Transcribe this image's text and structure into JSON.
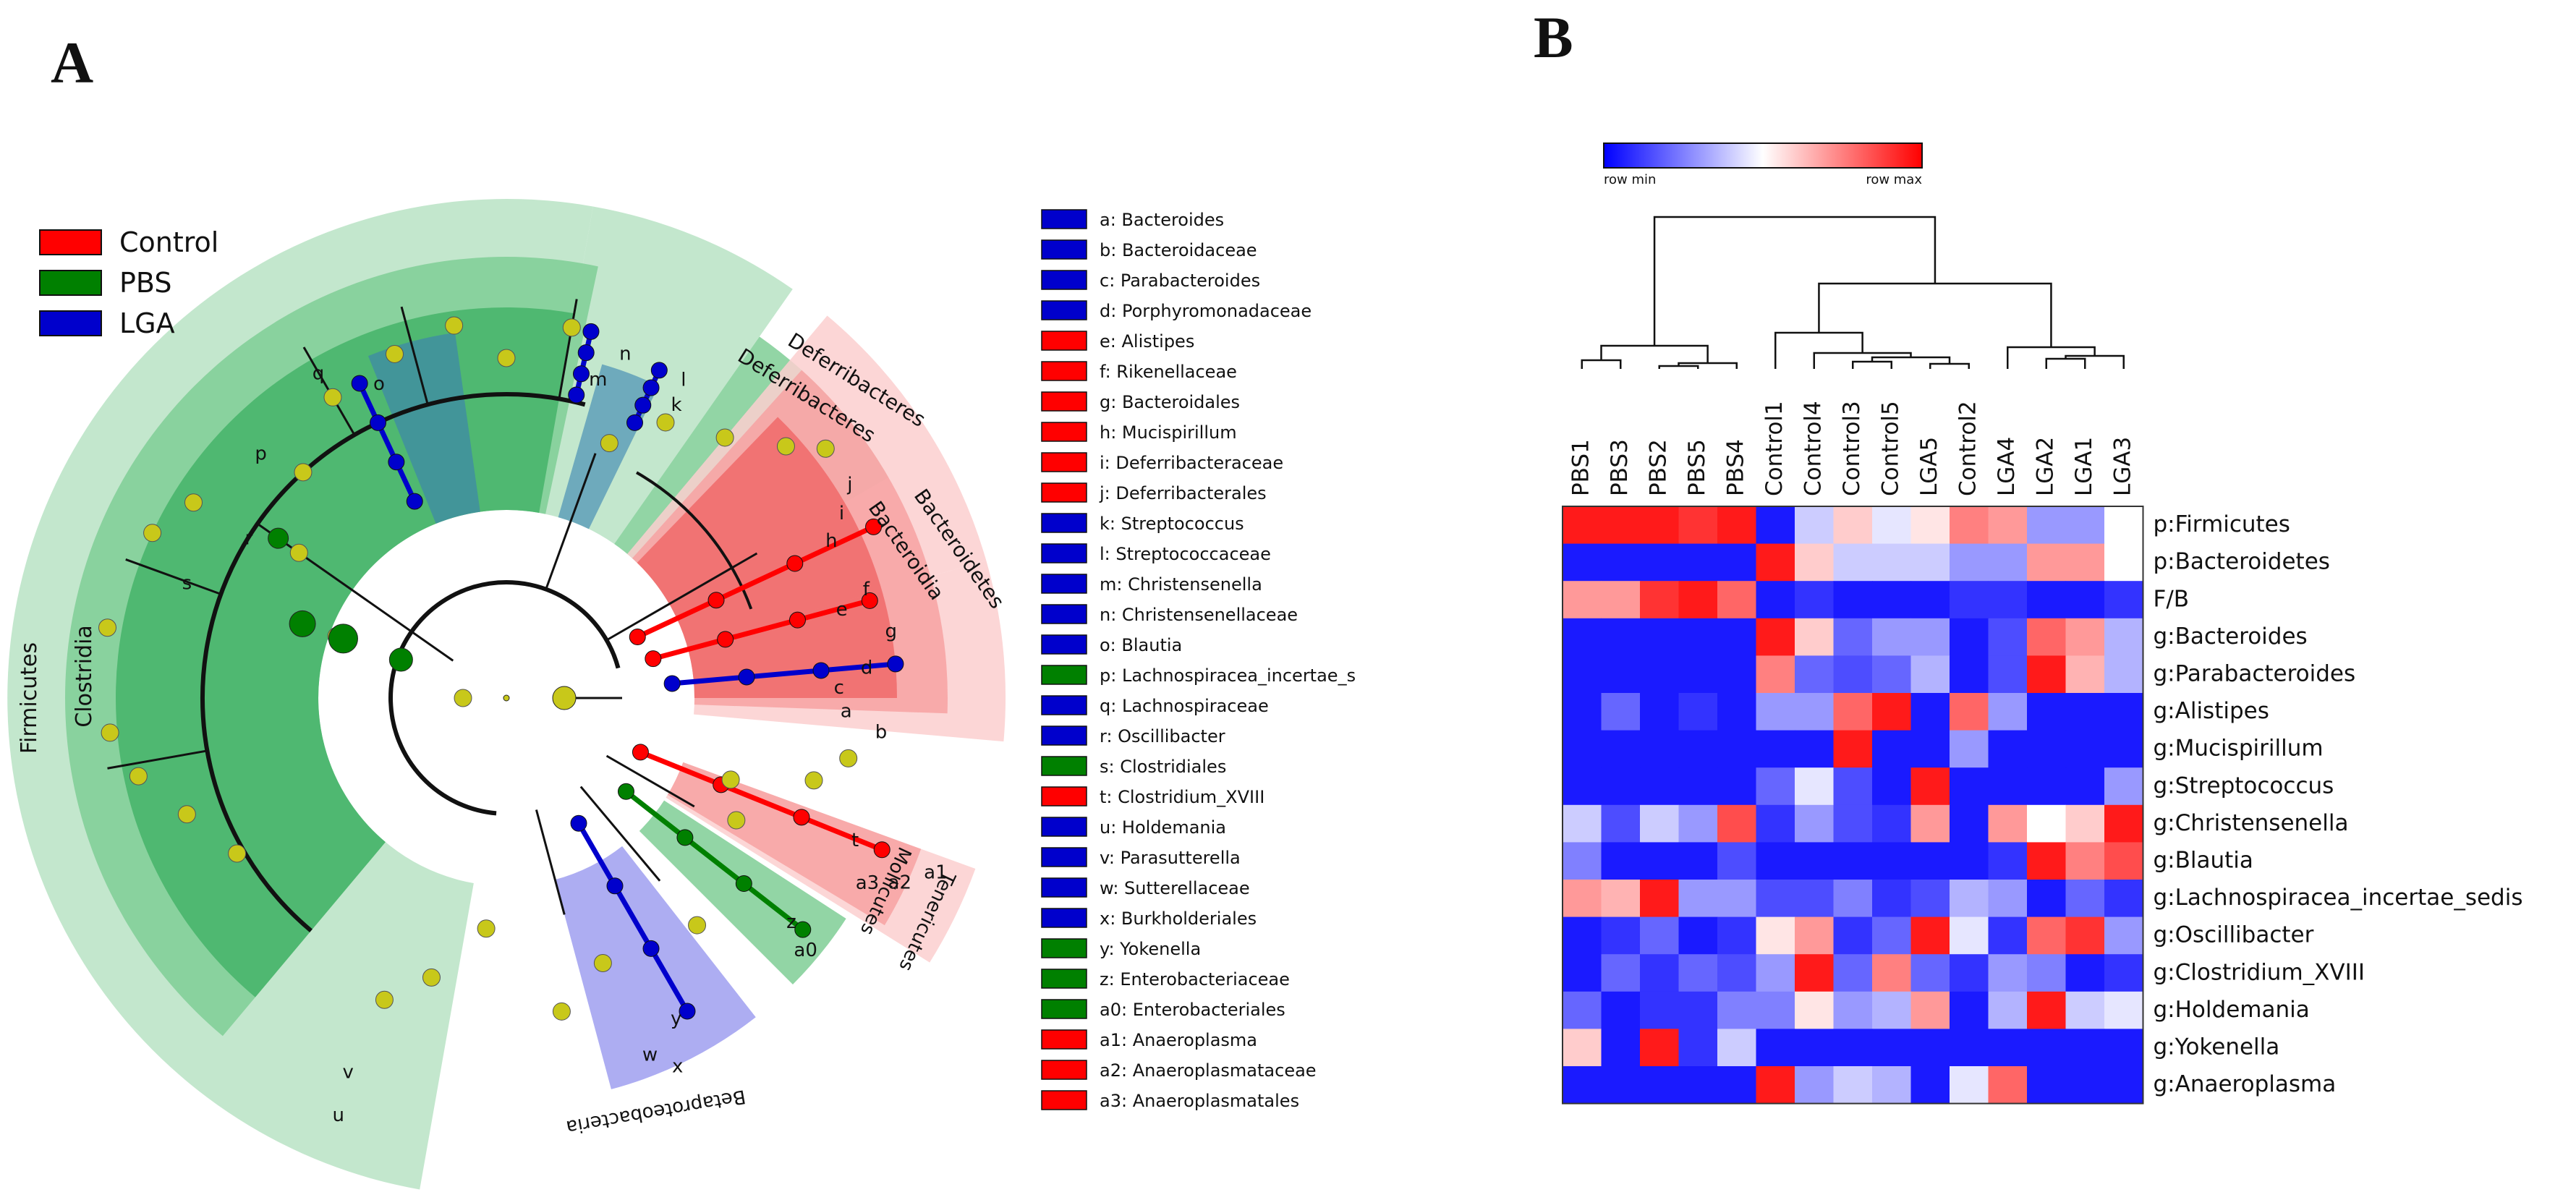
{
  "panels": {
    "a": "A",
    "b": "B"
  },
  "colors": {
    "control": "#ff0000",
    "pbs": "#008000",
    "lga": "#0000cc",
    "neutral_node": "#c8c81a",
    "firmicutes_light": "#b8e3c4",
    "firmicutes_mid": "#7fce95",
    "firmicutes_dark": "#45b469",
    "bacteroidetes_light": "#fbcfcf",
    "bacteroidetes_mid": "#f7a2a2",
    "bacteroidetes_dark": "#f06a6a",
    "proteo_blue": "#9f9ff0"
  },
  "chart_data": [
    {
      "type": "cladogram",
      "legend": [
        {
          "name": "Control",
          "color": "#ff0000"
        },
        {
          "name": "PBS",
          "color": "#008000"
        },
        {
          "name": "LGA",
          "color": "#0000cc"
        }
      ],
      "sector_labels": [
        "Firmicutes",
        "Clostridia",
        "Deferribacteres",
        "Deferribacteres",
        "Bacteroidetes",
        "Bacteroidia",
        "Tenericutes",
        "Mollicutes",
        "Betaproteobacteria"
      ],
      "clade_letters": [
        "n",
        "m",
        "l",
        "k",
        "j",
        "i",
        "h",
        "f",
        "e",
        "g",
        "d",
        "c",
        "b",
        "a",
        "q",
        "o",
        "p",
        "s",
        "r",
        "t",
        "a3",
        "a2",
        "a1",
        "a0",
        "z",
        "y",
        "x",
        "w",
        "v",
        "u"
      ],
      "key": [
        {
          "label": "a: Bacteroides",
          "group": "LGA"
        },
        {
          "label": "b: Bacteroidaceae",
          "group": "LGA"
        },
        {
          "label": "c: Parabacteroides",
          "group": "LGA"
        },
        {
          "label": "d: Porphyromonadaceae",
          "group": "LGA"
        },
        {
          "label": "e: Alistipes",
          "group": "Control"
        },
        {
          "label": "f: Rikenellaceae",
          "group": "Control"
        },
        {
          "label": "g: Bacteroidales",
          "group": "Control"
        },
        {
          "label": "h: Mucispirillum",
          "group": "Control"
        },
        {
          "label": "i: Deferribacteraceae",
          "group": "Control"
        },
        {
          "label": "j: Deferribacterales",
          "group": "Control"
        },
        {
          "label": "k: Streptococcus",
          "group": "LGA"
        },
        {
          "label": "l: Streptococcaceae",
          "group": "LGA"
        },
        {
          "label": "m: Christensenella",
          "group": "LGA"
        },
        {
          "label": "n: Christensenellaceae",
          "group": "LGA"
        },
        {
          "label": "o: Blautia",
          "group": "LGA"
        },
        {
          "label": "p: Lachnospiracea_incertae_s",
          "group": "PBS"
        },
        {
          "label": "q: Lachnospiraceae",
          "group": "LGA"
        },
        {
          "label": "r: Oscillibacter",
          "group": "LGA"
        },
        {
          "label": "s: Clostridiales",
          "group": "PBS"
        },
        {
          "label": "t: Clostridium_XVIII",
          "group": "Control"
        },
        {
          "label": "u: Holdemania",
          "group": "LGA"
        },
        {
          "label": "v: Parasutterella",
          "group": "LGA"
        },
        {
          "label": "w: Sutterellaceae",
          "group": "LGA"
        },
        {
          "label": "x: Burkholderiales",
          "group": "LGA"
        },
        {
          "label": "y: Yokenella",
          "group": "PBS"
        },
        {
          "label": "z: Enterobacteriaceae",
          "group": "PBS"
        },
        {
          "label": "a0: Enterobacteriales",
          "group": "PBS"
        },
        {
          "label": "a1: Anaeroplasma",
          "group": "Control"
        },
        {
          "label": "a2: Anaeroplasmataceae",
          "group": "Control"
        },
        {
          "label": "a3: Anaeroplasmatales",
          "group": "Control"
        }
      ]
    },
    {
      "type": "heatmap",
      "colorbar": {
        "min_label": "row min",
        "max_label": "row max",
        "colors": [
          "#0000ff",
          "#ffffff",
          "#ff0000"
        ]
      },
      "columns": [
        "PBS1",
        "PBS3",
        "PBS2",
        "PBS5",
        "PBS4",
        "Control1",
        "Control4",
        "Control3",
        "Control5",
        "LGA5",
        "Control2",
        "LGA4",
        "LGA2",
        "LGA1",
        "LGA3"
      ],
      "rows": [
        "p:Firmicutes",
        "p:Bacteroidetes",
        "F/B",
        "g:Bacteroides",
        "g:Parabacteroides",
        "g:Alistipes",
        "g:Mucispirillum",
        "g:Streptococcus",
        "g:Christensenella",
        "g:Blautia",
        "g:Lachnospiracea_incertae_sedis",
        "g:Oscillibacter",
        "g:Clostridium_XVIII",
        "g:Holdemania",
        "g:Yokenella",
        "g:Anaeroplasma"
      ],
      "values": [
        [
          0.95,
          0.95,
          0.95,
          0.9,
          0.95,
          0.05,
          0.4,
          0.6,
          0.45,
          0.55,
          0.75,
          0.7,
          0.3,
          0.3,
          0.5
        ],
        [
          0.05,
          0.05,
          0.05,
          0.05,
          0.05,
          0.95,
          0.6,
          0.4,
          0.4,
          0.4,
          0.3,
          0.3,
          0.7,
          0.7,
          0.5
        ],
        [
          0.7,
          0.7,
          0.9,
          0.95,
          0.8,
          0.05,
          0.1,
          0.05,
          0.05,
          0.05,
          0.1,
          0.1,
          0.05,
          0.05,
          0.1
        ],
        [
          0.05,
          0.05,
          0.05,
          0.05,
          0.05,
          0.95,
          0.6,
          0.2,
          0.3,
          0.3,
          0.05,
          0.15,
          0.8,
          0.7,
          0.35
        ],
        [
          0.05,
          0.05,
          0.05,
          0.05,
          0.05,
          0.75,
          0.2,
          0.15,
          0.2,
          0.35,
          0.05,
          0.15,
          0.95,
          0.65,
          0.35
        ],
        [
          0.05,
          0.2,
          0.05,
          0.1,
          0.05,
          0.3,
          0.3,
          0.8,
          0.95,
          0.05,
          0.8,
          0.3,
          0.05,
          0.05,
          0.05
        ],
        [
          0.05,
          0.05,
          0.05,
          0.05,
          0.05,
          0.05,
          0.05,
          0.95,
          0.05,
          0.05,
          0.3,
          0.05,
          0.05,
          0.05,
          0.05
        ],
        [
          0.05,
          0.05,
          0.05,
          0.05,
          0.05,
          0.2,
          0.45,
          0.15,
          0.05,
          0.95,
          0.05,
          0.05,
          0.05,
          0.05,
          0.3
        ],
        [
          0.4,
          0.15,
          0.4,
          0.3,
          0.85,
          0.1,
          0.3,
          0.15,
          0.1,
          0.7,
          0.05,
          0.7,
          0.5,
          0.6,
          0.95
        ],
        [
          0.25,
          0.05,
          0.05,
          0.05,
          0.15,
          0.05,
          0.05,
          0.05,
          0.05,
          0.05,
          0.05,
          0.1,
          0.95,
          0.75,
          0.85
        ],
        [
          0.7,
          0.65,
          0.95,
          0.3,
          0.3,
          0.15,
          0.15,
          0.25,
          0.1,
          0.15,
          0.35,
          0.3,
          0.05,
          0.2,
          0.1
        ],
        [
          0.05,
          0.1,
          0.2,
          0.05,
          0.1,
          0.55,
          0.7,
          0.1,
          0.2,
          0.95,
          0.45,
          0.1,
          0.8,
          0.9,
          0.3
        ],
        [
          0.05,
          0.2,
          0.1,
          0.2,
          0.15,
          0.3,
          0.95,
          0.2,
          0.75,
          0.2,
          0.1,
          0.3,
          0.25,
          0.05,
          0.1
        ],
        [
          0.2,
          0.05,
          0.1,
          0.1,
          0.25,
          0.25,
          0.55,
          0.3,
          0.35,
          0.7,
          0.05,
          0.35,
          0.95,
          0.4,
          0.45
        ],
        [
          0.6,
          0.05,
          0.95,
          0.1,
          0.4,
          0.05,
          0.05,
          0.05,
          0.05,
          0.05,
          0.05,
          0.05,
          0.05,
          0.05,
          0.05
        ],
        [
          0.05,
          0.05,
          0.05,
          0.05,
          0.05,
          0.95,
          0.3,
          0.4,
          0.35,
          0.05,
          0.45,
          0.8,
          0.05,
          0.05,
          0.05
        ]
      ]
    }
  ]
}
